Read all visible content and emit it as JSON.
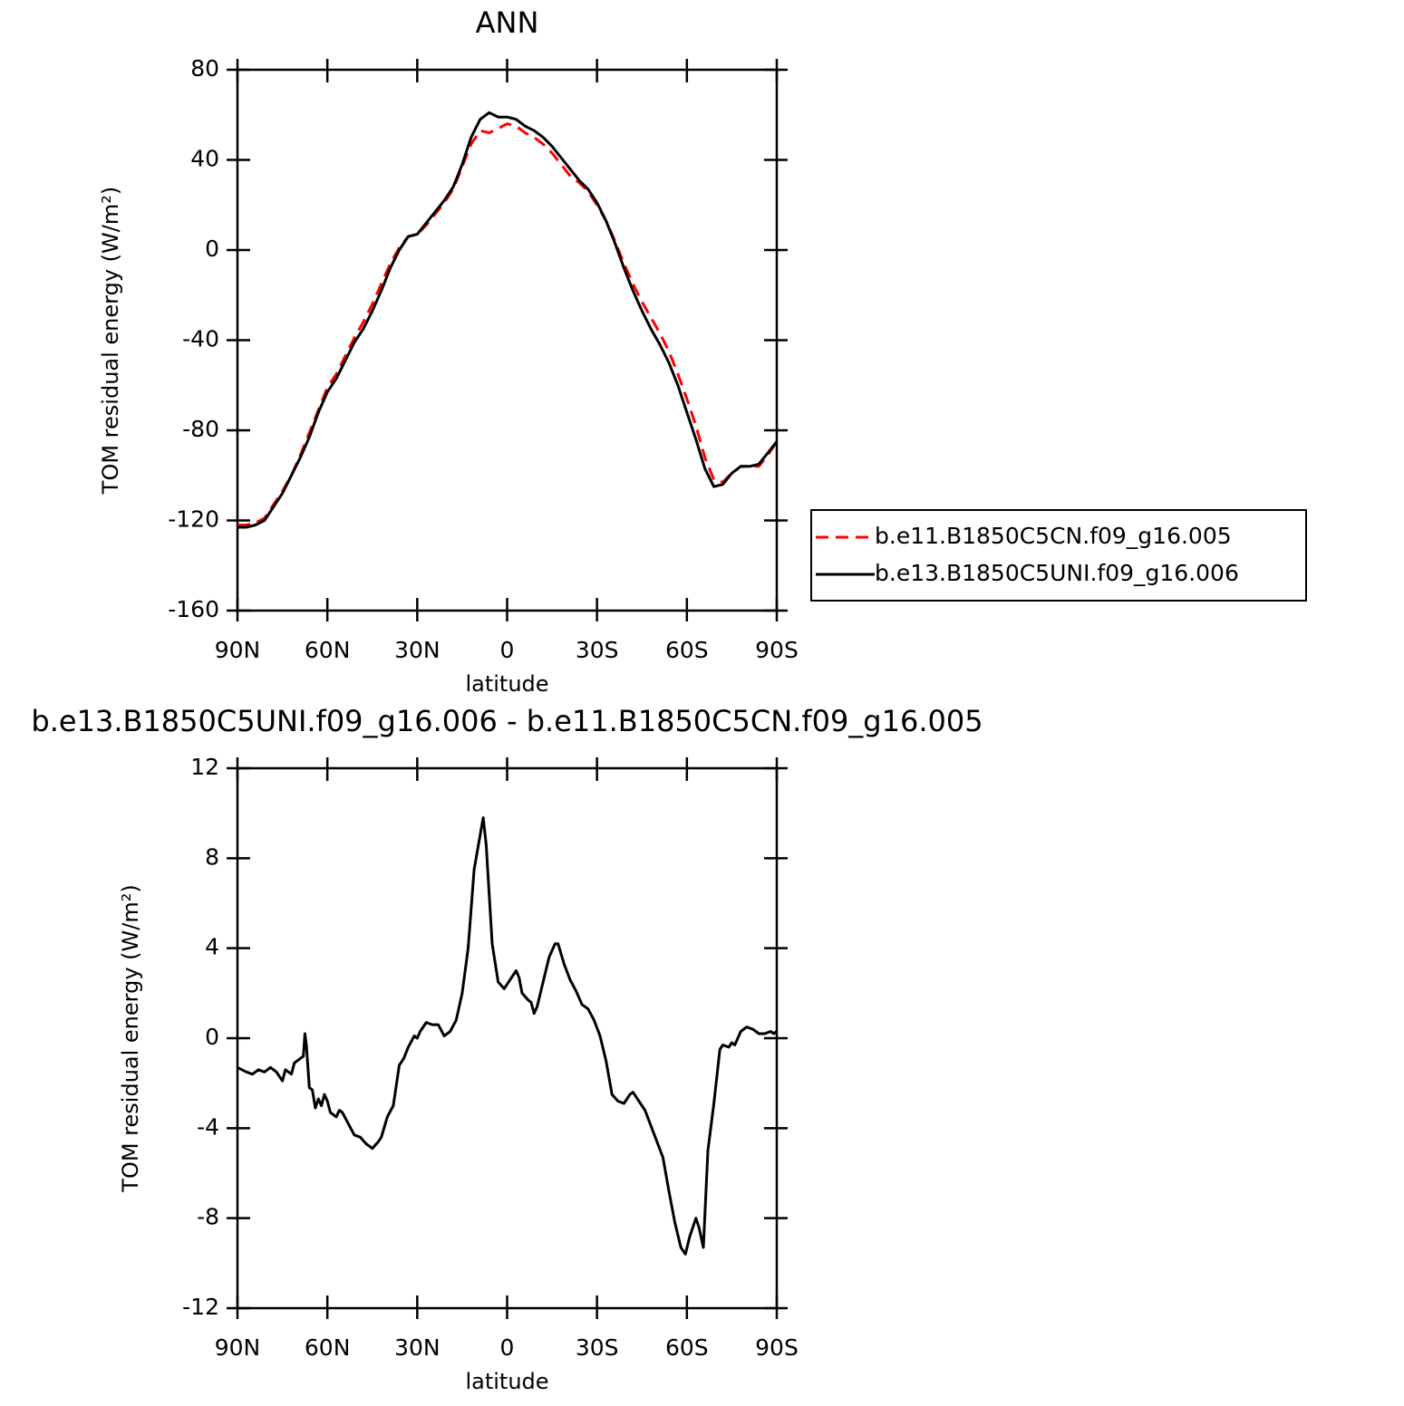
{
  "chart_data": [
    {
      "type": "line",
      "title": "ANN",
      "xlabel": "latitude",
      "ylabel": "TOM residual energy (W/m²)",
      "x": [
        90,
        87,
        84,
        81,
        78,
        75,
        72,
        69,
        66,
        63,
        60,
        57,
        54,
        51,
        48,
        45,
        42,
        39,
        36,
        33,
        30,
        27,
        24,
        21,
        18,
        15,
        12,
        9,
        6,
        3,
        0,
        -3,
        -6,
        -9,
        -12,
        -15,
        -18,
        -21,
        -24,
        -27,
        -30,
        -33,
        -36,
        -39,
        -42,
        -45,
        -48,
        -51,
        -54,
        -57,
        -60,
        -63,
        -66,
        -69,
        -72,
        -75,
        -78,
        -81,
        -84,
        -87,
        -90
      ],
      "series": [
        {
          "name": "b.e11.B1850C5CN.f09_g16.005",
          "color": "#ff0000",
          "line_style": "dashed",
          "values": [
            -122,
            -122,
            -121,
            -119,
            -113,
            -107,
            -100,
            -91,
            -81,
            -71,
            -61,
            -55,
            -47,
            -39,
            -32,
            -24,
            -15,
            -6,
            1,
            6,
            7,
            11,
            16,
            21,
            27,
            37,
            47,
            53,
            52,
            54,
            56,
            55,
            52,
            50,
            47,
            43,
            38,
            33,
            30,
            26,
            20,
            13,
            4,
            -6,
            -15,
            -23,
            -30,
            -37,
            -45,
            -55,
            -66,
            -78,
            -92,
            -102,
            -103,
            -99,
            -96,
            -96,
            -96,
            -91,
            -85
          ]
        },
        {
          "name": "b.e13.B1850C5UNI.f09_g16.006",
          "color": "#000000",
          "line_style": "solid",
          "values": [
            -123,
            -123,
            -122,
            -120,
            -114,
            -108,
            -100,
            -92,
            -83,
            -72,
            -63,
            -57,
            -49,
            -41,
            -35,
            -27,
            -18,
            -8,
            0,
            6,
            7,
            12,
            17,
            22,
            28,
            38,
            50,
            58,
            61,
            59,
            59,
            58,
            55,
            53,
            50,
            46,
            41,
            36,
            31,
            27,
            21,
            13,
            3,
            -8,
            -18,
            -27,
            -35,
            -42,
            -50,
            -60,
            -72,
            -84,
            -97,
            -105,
            -104,
            -99,
            -96,
            -96,
            -95,
            -90,
            -85
          ]
        }
      ],
      "xlim": [
        90,
        -90
      ],
      "xticks": [
        {
          "value": 90,
          "label": "90N"
        },
        {
          "value": 60,
          "label": "60N"
        },
        {
          "value": 30,
          "label": "30N"
        },
        0,
        {
          "value": -30,
          "label": "30S"
        },
        {
          "value": -60,
          "label": "60S"
        },
        {
          "value": -90,
          "label": "90S"
        }
      ],
      "ylim": [
        -160,
        80
      ],
      "yticks": [
        80,
        40,
        0,
        -40,
        -80,
        -120,
        -160
      ],
      "legend": "right"
    },
    {
      "type": "line",
      "title": "b.e13.B1850C5UNI.f09_g16.006 - b.e11.B1850C5CN.f09_g16.005",
      "xlabel": "latitude",
      "ylabel": "TOM residual energy (W/m²)",
      "x": [
        90,
        87,
        85,
        83,
        81,
        79,
        77,
        75,
        74,
        72,
        71,
        69,
        68,
        67.5,
        67,
        66,
        65,
        64,
        63,
        62,
        61,
        60,
        59,
        57,
        56,
        55,
        53,
        51,
        49,
        47,
        45,
        43,
        42,
        40,
        38,
        36,
        34.5,
        33,
        31,
        30,
        29,
        27,
        25,
        23,
        21,
        19,
        17,
        15,
        13,
        11,
        8,
        7,
        5,
        3,
        1,
        -1,
        -3,
        -4,
        -5,
        -7,
        -8,
        -9,
        -10,
        -12,
        -14,
        -16,
        -17,
        -19,
        -21,
        -23,
        -25,
        -27,
        -29,
        -31,
        -33,
        -35,
        -37,
        -39,
        -41,
        -42,
        -44,
        -46,
        -48,
        -50,
        -52,
        -54,
        -56,
        -58,
        -59.5,
        -61,
        -63,
        -64,
        -65.5,
        -67,
        -69,
        -71,
        -72,
        -74,
        -75,
        -76,
        -78,
        -80,
        -82,
        -84,
        -86,
        -88,
        -89,
        -90
      ],
      "values": [
        -1.3,
        -1.5,
        -1.6,
        -1.4,
        -1.5,
        -1.3,
        -1.5,
        -1.9,
        -1.4,
        -1.6,
        -1.1,
        -0.9,
        -0.8,
        0.2,
        -0.3,
        -2.2,
        -2.3,
        -3.1,
        -2.7,
        -3.0,
        -2.5,
        -2.8,
        -3.3,
        -3.5,
        -3.2,
        -3.3,
        -3.8,
        -4.3,
        -4.4,
        -4.7,
        -4.9,
        -4.6,
        -4.4,
        -3.5,
        -3.0,
        -1.2,
        -0.9,
        -0.4,
        0.1,
        0.0,
        0.3,
        0.7,
        0.6,
        0.6,
        0.1,
        0.3,
        0.8,
        2.0,
        4.0,
        7.5,
        9.8,
        8.6,
        4.2,
        2.5,
        2.2,
        2.6,
        3.0,
        2.7,
        2.0,
        1.7,
        1.6,
        1.1,
        1.4,
        2.5,
        3.6,
        4.2,
        4.2,
        3.3,
        2.6,
        2.1,
        1.5,
        1.3,
        0.8,
        0.1,
        -1.0,
        -2.5,
        -2.8,
        -2.9,
        -2.5,
        -2.4,
        -2.8,
        -3.2,
        -3.9,
        -4.6,
        -5.3,
        -6.8,
        -8.2,
        -9.3,
        -9.6,
        -8.8,
        -8.0,
        -8.4,
        -9.3,
        -5.0,
        -2.9,
        -0.5,
        -0.3,
        -0.4,
        -0.2,
        -0.3,
        0.3,
        0.5,
        0.4,
        0.2,
        0.2,
        0.3,
        0.2,
        0.3
      ],
      "color": "#000000",
      "xlim": [
        90,
        -90
      ],
      "xticks": [
        {
          "value": 90,
          "label": "90N"
        },
        {
          "value": 60,
          "label": "60N"
        },
        {
          "value": 30,
          "label": "30N"
        },
        0,
        {
          "value": -30,
          "label": "30S"
        },
        {
          "value": -60,
          "label": "60S"
        },
        {
          "value": -90,
          "label": "90S"
        }
      ],
      "ylim": [
        -12,
        12
      ],
      "yticks": [
        12,
        8,
        4,
        0,
        -4,
        -8,
        -12
      ]
    }
  ]
}
